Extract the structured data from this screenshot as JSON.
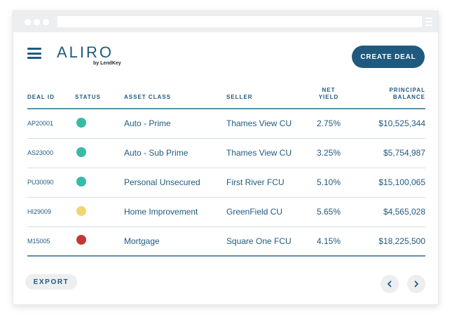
{
  "brand": {
    "logo": "ALIRO",
    "sub": "by LendKey"
  },
  "header": {
    "create_label": "CREATE DEAL"
  },
  "table": {
    "columns": {
      "deal_id": "DEAL ID",
      "status": "STATUS",
      "asset_class": "ASSET CLASS",
      "seller": "SELLER",
      "net_yield_1": "NET",
      "net_yield_2": "YIELD",
      "principal_1": "PRINCIPAL",
      "principal_2": "BALANCE"
    },
    "rows": [
      {
        "id": "AP20001",
        "status": "teal",
        "asset": "Auto - Prime",
        "seller": "Thames View CU",
        "yield": "2.75%",
        "balance": "$10,525,344"
      },
      {
        "id": "AS23000",
        "status": "teal",
        "asset": "Auto - Sub Prime",
        "seller": "Thames View CU",
        "yield": "3.25%",
        "balance": "$5,754,987"
      },
      {
        "id": "PU30090",
        "status": "teal",
        "asset": "Personal Unsecured",
        "seller": "First River FCU",
        "yield": "5.10%",
        "balance": "$15,100,065"
      },
      {
        "id": "HI29009",
        "status": "yellow",
        "asset": "Home Improvement",
        "seller": "GreenField CU",
        "yield": "5.65%",
        "balance": "$4,565,028"
      },
      {
        "id": "M15005",
        "status": "red",
        "asset": "Mortgage",
        "seller": "Square One FCU",
        "yield": "4.15%",
        "balance": "$18,225,500"
      }
    ]
  },
  "status_colors": {
    "teal": "#36bba6",
    "yellow": "#f3d570",
    "red": "#c23a38"
  },
  "footer": {
    "export_label": "EXPORT"
  },
  "icons": {
    "menu": "hamburger-menu-icon",
    "prev": "chevron-left-icon",
    "next": "chevron-right-icon"
  },
  "colors": {
    "brand": "#1f5a7e",
    "rule": "#5c93ab",
    "chrome": "#eceeef"
  }
}
